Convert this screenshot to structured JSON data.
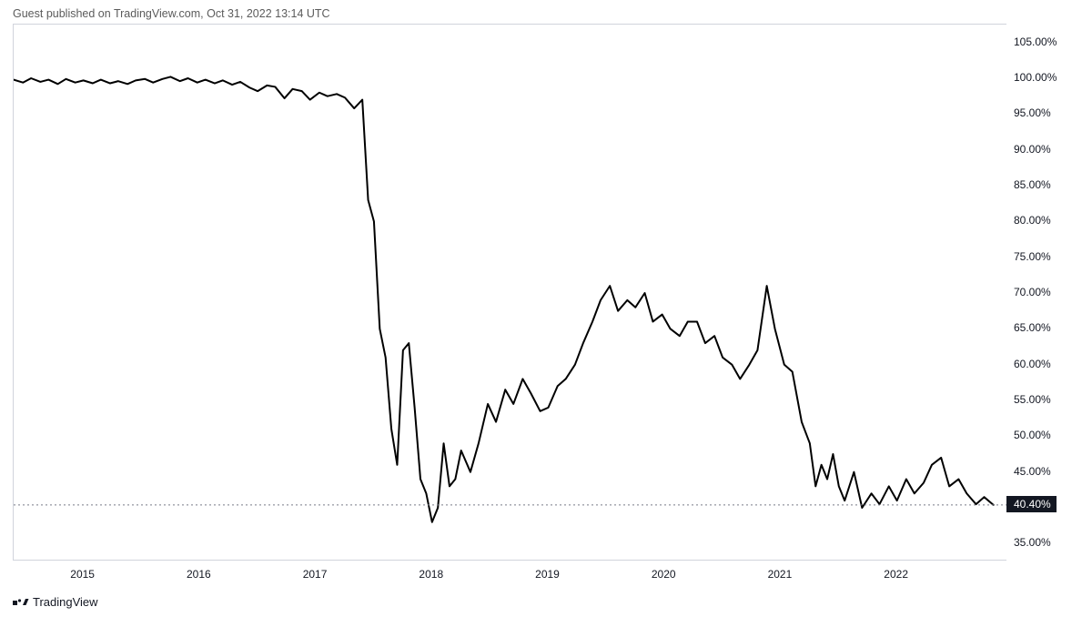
{
  "header": {
    "text": "Guest published on TradingView.com, Oct 31, 2022 13:14 UTC"
  },
  "footer": {
    "brand": "TradingView"
  },
  "chart": {
    "type": "line",
    "line_color": "#000000",
    "line_width": 2,
    "background_color": "#ffffff",
    "border_color": "#d1d4dc",
    "dash_color": "#787b86",
    "text_color": "#131722",
    "header_color": "#5b5b5b",
    "x_domain_min": 2014.4,
    "x_domain_max": 2022.95,
    "y_domain_min": 32.5,
    "y_domain_max": 107.5,
    "y_ticks": [
      35,
      40,
      45,
      50,
      55,
      60,
      65,
      70,
      75,
      80,
      85,
      90,
      95,
      100,
      105
    ],
    "y_tick_suffix": ".00%",
    "x_ticks": [
      2015,
      2016,
      2017,
      2018,
      2019,
      2020,
      2021,
      2022
    ],
    "current_value": 40.4,
    "current_label": "40.40%",
    "series": [
      [
        2014.4,
        99.8
      ],
      [
        2014.48,
        99.4
      ],
      [
        2014.55,
        100.0
      ],
      [
        2014.63,
        99.5
      ],
      [
        2014.7,
        99.8
      ],
      [
        2014.78,
        99.2
      ],
      [
        2014.85,
        99.9
      ],
      [
        2014.93,
        99.4
      ],
      [
        2015.0,
        99.7
      ],
      [
        2015.08,
        99.3
      ],
      [
        2015.15,
        99.8
      ],
      [
        2015.23,
        99.3
      ],
      [
        2015.3,
        99.6
      ],
      [
        2015.38,
        99.2
      ],
      [
        2015.45,
        99.7
      ],
      [
        2015.53,
        99.9
      ],
      [
        2015.6,
        99.4
      ],
      [
        2015.68,
        99.9
      ],
      [
        2015.75,
        100.2
      ],
      [
        2015.83,
        99.6
      ],
      [
        2015.9,
        100.0
      ],
      [
        2015.98,
        99.4
      ],
      [
        2016.05,
        99.8
      ],
      [
        2016.13,
        99.3
      ],
      [
        2016.2,
        99.7
      ],
      [
        2016.28,
        99.1
      ],
      [
        2016.35,
        99.5
      ],
      [
        2016.43,
        98.7
      ],
      [
        2016.5,
        98.2
      ],
      [
        2016.58,
        99.0
      ],
      [
        2016.65,
        98.8
      ],
      [
        2016.73,
        97.2
      ],
      [
        2016.8,
        98.5
      ],
      [
        2016.88,
        98.2
      ],
      [
        2016.95,
        97.0
      ],
      [
        2017.03,
        98.0
      ],
      [
        2017.1,
        97.5
      ],
      [
        2017.18,
        97.8
      ],
      [
        2017.25,
        97.3
      ],
      [
        2017.33,
        95.8
      ],
      [
        2017.4,
        97.0
      ],
      [
        2017.45,
        83.0
      ],
      [
        2017.5,
        80.0
      ],
      [
        2017.55,
        65.0
      ],
      [
        2017.6,
        61.0
      ],
      [
        2017.65,
        51.0
      ],
      [
        2017.7,
        46.0
      ],
      [
        2017.75,
        62.0
      ],
      [
        2017.8,
        63.0
      ],
      [
        2017.85,
        54.0
      ],
      [
        2017.9,
        44.0
      ],
      [
        2017.95,
        42.0
      ],
      [
        2018.0,
        38.0
      ],
      [
        2018.05,
        40.0
      ],
      [
        2018.1,
        49.0
      ],
      [
        2018.15,
        43.0
      ],
      [
        2018.2,
        44.0
      ],
      [
        2018.25,
        48.0
      ],
      [
        2018.33,
        45.0
      ],
      [
        2018.4,
        49.0
      ],
      [
        2018.48,
        54.5
      ],
      [
        2018.55,
        52.0
      ],
      [
        2018.63,
        56.5
      ],
      [
        2018.7,
        54.5
      ],
      [
        2018.78,
        58.0
      ],
      [
        2018.85,
        56.0
      ],
      [
        2018.93,
        53.5
      ],
      [
        2019.0,
        54.0
      ],
      [
        2019.08,
        57.0
      ],
      [
        2019.15,
        58.0
      ],
      [
        2019.23,
        60.0
      ],
      [
        2019.3,
        63.0
      ],
      [
        2019.38,
        66.0
      ],
      [
        2019.45,
        69.0
      ],
      [
        2019.53,
        71.0
      ],
      [
        2019.6,
        67.5
      ],
      [
        2019.68,
        69.0
      ],
      [
        2019.75,
        68.0
      ],
      [
        2019.83,
        70.0
      ],
      [
        2019.9,
        66.0
      ],
      [
        2019.98,
        67.0
      ],
      [
        2020.05,
        65.0
      ],
      [
        2020.13,
        64.0
      ],
      [
        2020.2,
        66.0
      ],
      [
        2020.28,
        66.0
      ],
      [
        2020.35,
        63.0
      ],
      [
        2020.43,
        64.0
      ],
      [
        2020.5,
        61.0
      ],
      [
        2020.58,
        60.0
      ],
      [
        2020.65,
        58.0
      ],
      [
        2020.73,
        60.0
      ],
      [
        2020.8,
        62.0
      ],
      [
        2020.88,
        71.0
      ],
      [
        2020.95,
        65.0
      ],
      [
        2021.03,
        60.0
      ],
      [
        2021.1,
        59.0
      ],
      [
        2021.18,
        52.0
      ],
      [
        2021.25,
        49.0
      ],
      [
        2021.3,
        43.0
      ],
      [
        2021.35,
        46.0
      ],
      [
        2021.4,
        44.0
      ],
      [
        2021.45,
        47.5
      ],
      [
        2021.5,
        43.0
      ],
      [
        2021.55,
        41.0
      ],
      [
        2021.63,
        45.0
      ],
      [
        2021.7,
        40.0
      ],
      [
        2021.78,
        42.0
      ],
      [
        2021.85,
        40.5
      ],
      [
        2021.93,
        43.0
      ],
      [
        2022.0,
        41.0
      ],
      [
        2022.08,
        44.0
      ],
      [
        2022.15,
        42.0
      ],
      [
        2022.23,
        43.5
      ],
      [
        2022.3,
        46.0
      ],
      [
        2022.38,
        47.0
      ],
      [
        2022.45,
        43.0
      ],
      [
        2022.53,
        44.0
      ],
      [
        2022.6,
        42.0
      ],
      [
        2022.68,
        40.5
      ],
      [
        2022.75,
        41.5
      ],
      [
        2022.83,
        40.4
      ]
    ]
  }
}
